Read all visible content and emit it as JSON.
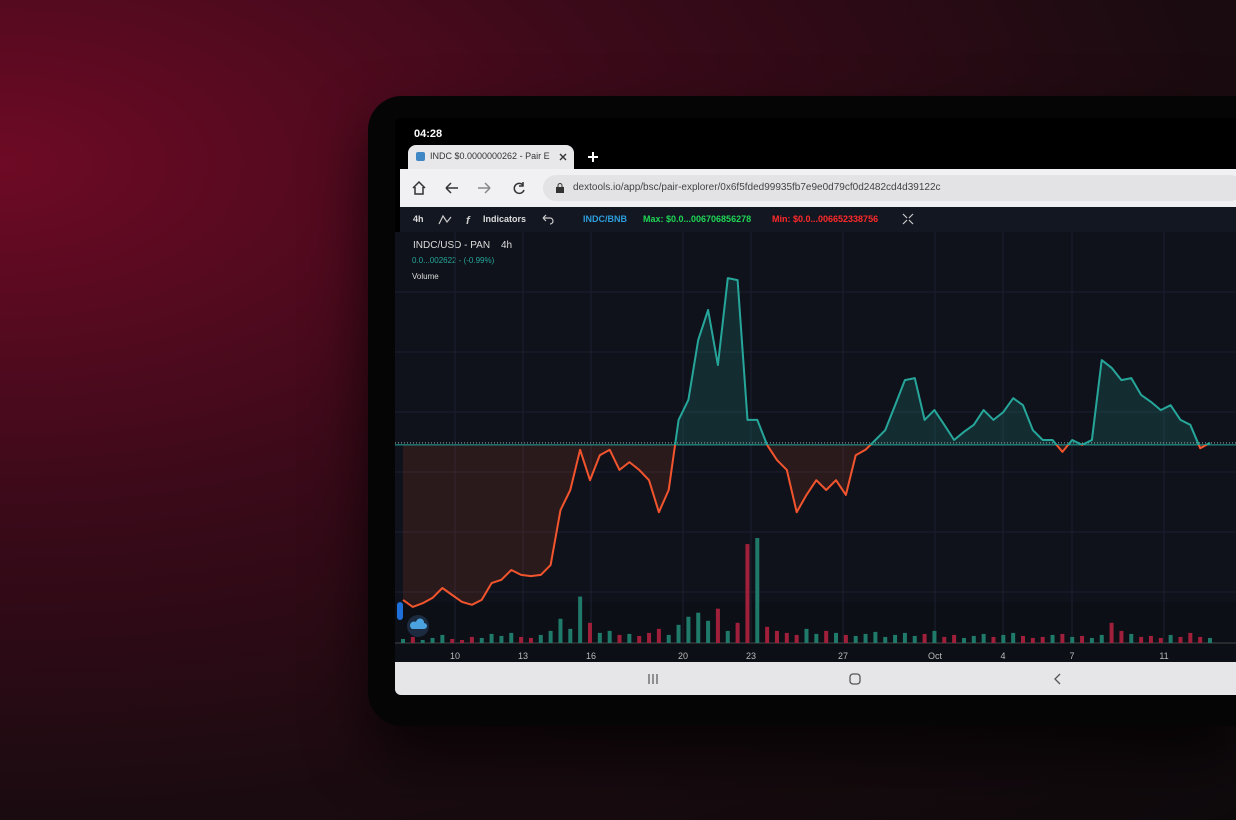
{
  "status_time": "04:28",
  "tab_title": "INDC $0.0000000262 - Pair E",
  "url": "dextools.io/app/bsc/pair-explorer/0x6f5fded99935fb7e9e0d79cf0d2482cd4d39122c",
  "toolbar": {
    "interval": "4h",
    "indicators": "Indicators",
    "pair": "INDC/BNB",
    "max": "Max: $0.0...006706856278",
    "min": "Min: $0.0...006652338756"
  },
  "chart_data": {
    "type": "line",
    "title": "INDC/USD - PAN",
    "interval": "4h",
    "price_label": "0.0...002622 - (-0.99%)",
    "volume_label": "Volume",
    "x_labels": [
      "10",
      "13",
      "16",
      "20",
      "23",
      "27",
      "Oct",
      "4",
      "7",
      "11"
    ],
    "ylim": [
      0,
      100
    ],
    "baseline": 48.8,
    "up_color": "#26a69a",
    "down_color": "#f2542d",
    "values": [
      11.0,
      9.3,
      10.2,
      11.5,
      13.9,
      12.2,
      10.5,
      9.8,
      11.0,
      15.1,
      15.9,
      18.3,
      17.1,
      16.8,
      17.1,
      19.5,
      32.9,
      37.8,
      47.6,
      40.2,
      46.3,
      47.6,
      42.7,
      44.6,
      42.7,
      40.2,
      32.4,
      37.8,
      54.9,
      59.8,
      74.4,
      81.7,
      68.3,
      89.5,
      89.0,
      54.9,
      54.9,
      48.8,
      45.1,
      42.7,
      32.4,
      36.6,
      40.2,
      37.8,
      40.2,
      36.6,
      46.3,
      47.6,
      50.0,
      52.4,
      58.5,
      64.6,
      65.1,
      54.9,
      57.3,
      53.7,
      50.0,
      52.0,
      53.7,
      57.3,
      54.9,
      56.8,
      60.2,
      58.5,
      52.4,
      50.0,
      50.0,
      47.1,
      50.0,
      48.8,
      50.0,
      69.5,
      67.6,
      64.6,
      65.1,
      61.0,
      59.3,
      57.3,
      58.5,
      54.9,
      53.7,
      48.0,
      49.3
    ],
    "volume": [
      4,
      6,
      3,
      5,
      8,
      4,
      3,
      6,
      5,
      9,
      7,
      10,
      6,
      5,
      8,
      12,
      24,
      14,
      46,
      20,
      10,
      12,
      8,
      9,
      7,
      10,
      14,
      8,
      18,
      26,
      30,
      22,
      34,
      12,
      20,
      98,
      104,
      16,
      12,
      10,
      8,
      14,
      9,
      12,
      10,
      8,
      7,
      9,
      11,
      6,
      8,
      10,
      7,
      9,
      12,
      6,
      8,
      5,
      7,
      9,
      6,
      8,
      10,
      7,
      5,
      6,
      8,
      9,
      6,
      7,
      5,
      8,
      20,
      12,
      9,
      6,
      7,
      5,
      8,
      6,
      10,
      6,
      5
    ]
  }
}
